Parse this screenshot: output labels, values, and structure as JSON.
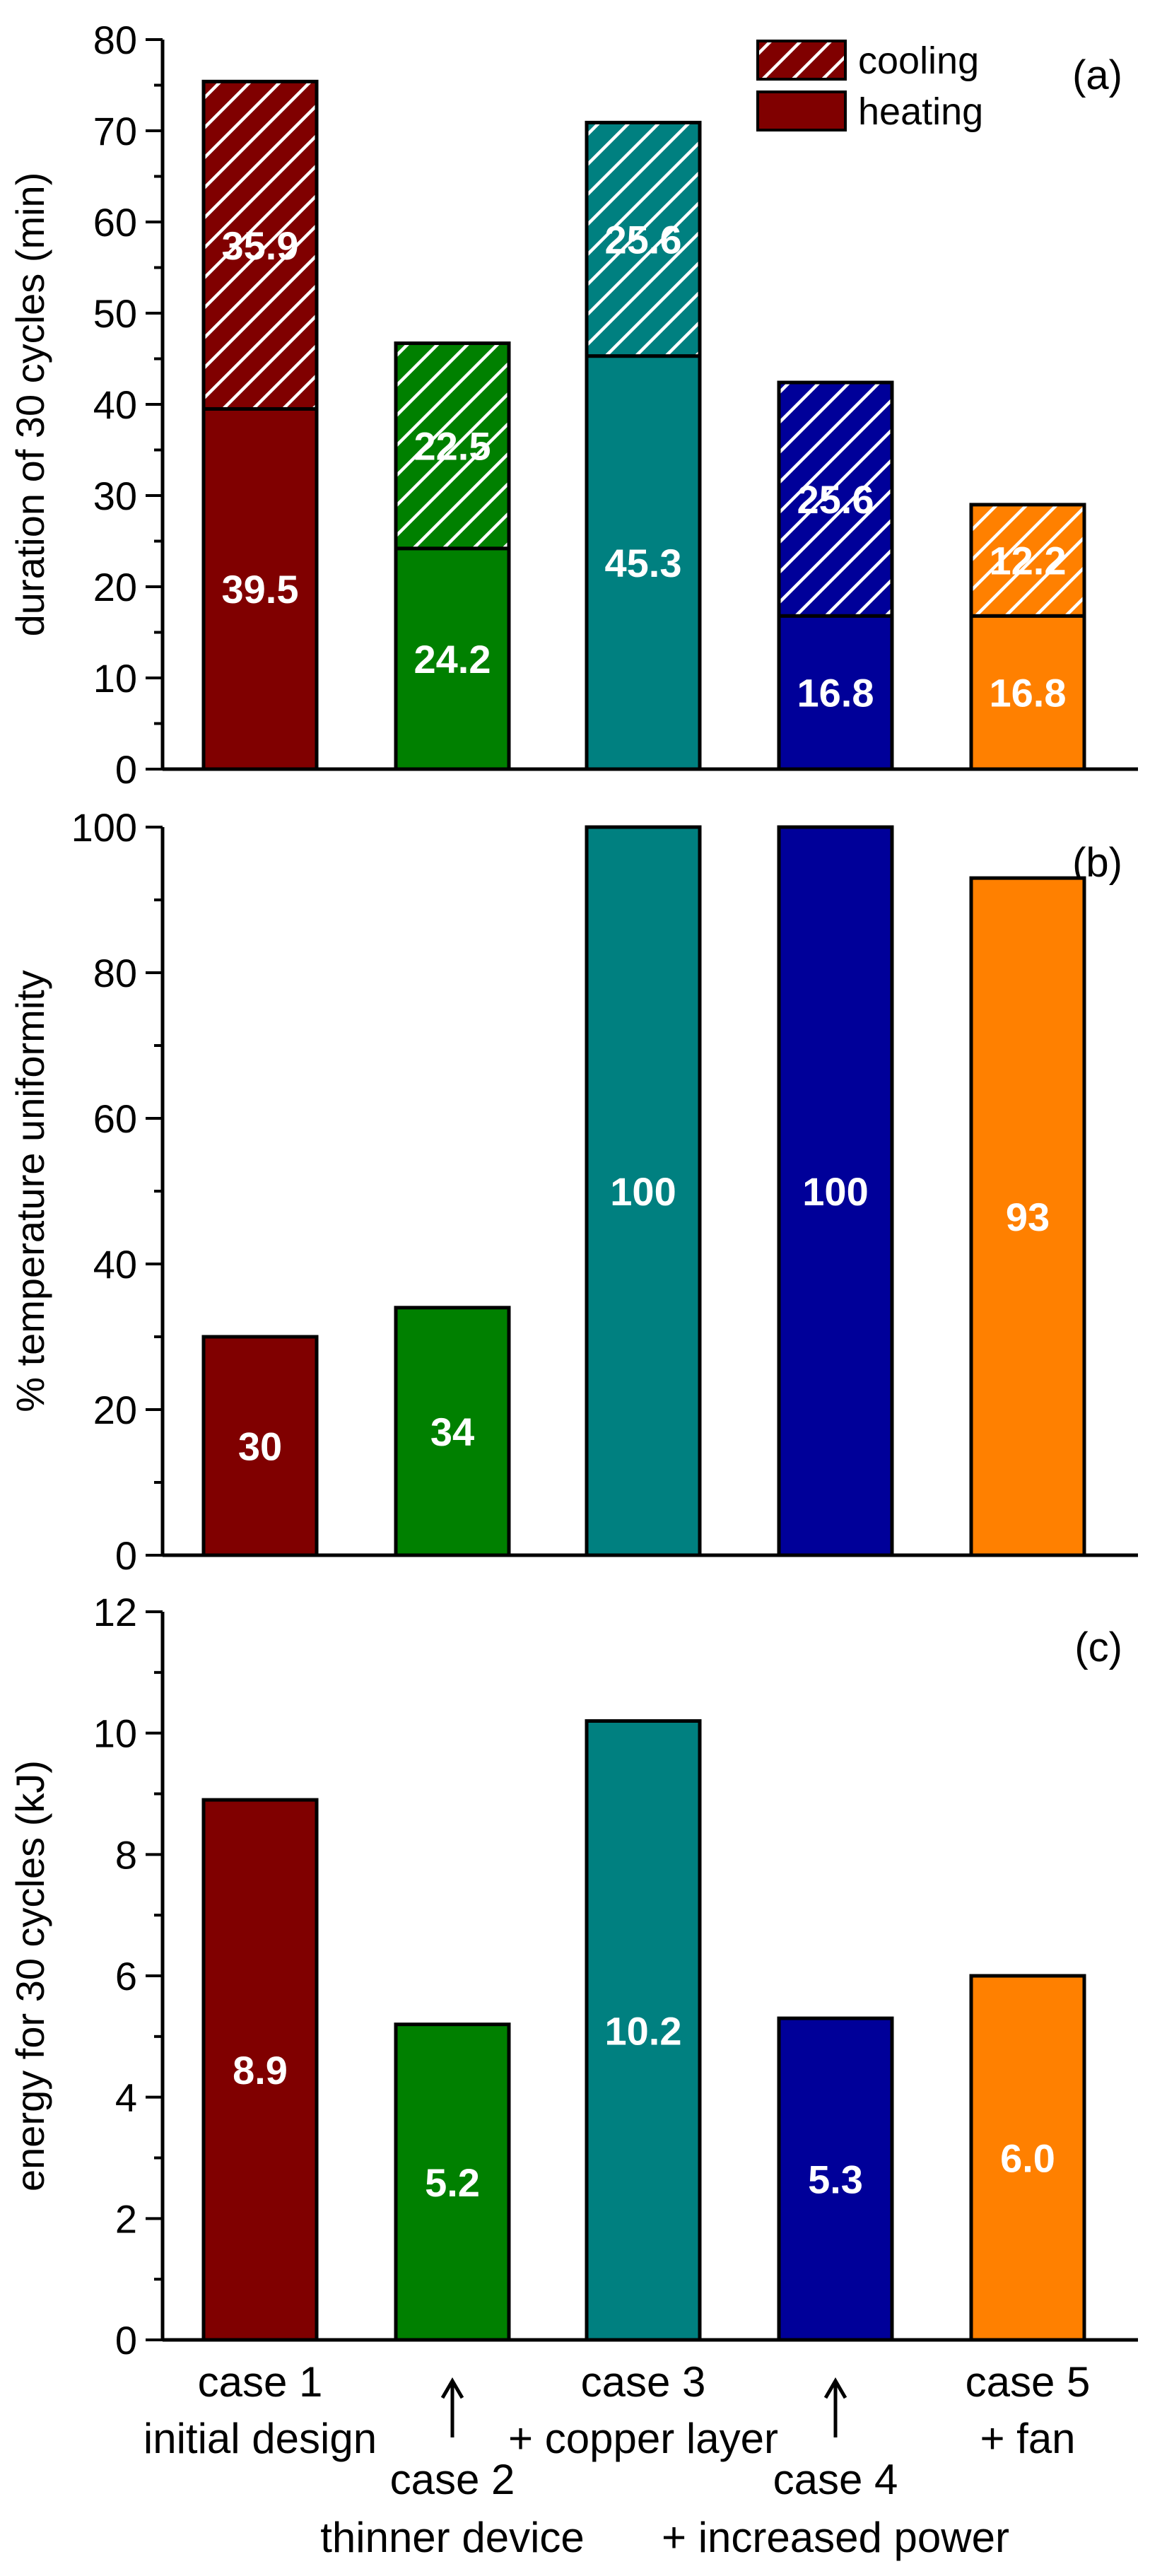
{
  "chart_data": [
    {
      "panel": "(a)",
      "type": "bar",
      "stacked": true,
      "ylabel": "duration of 30 cycles (min)",
      "ylim": [
        0,
        80
      ],
      "yticks": [
        0,
        10,
        20,
        30,
        40,
        50,
        60,
        70,
        80
      ],
      "legend_position": "top-right",
      "legend": [
        "cooling",
        "heating"
      ],
      "series": [
        {
          "name": "heating",
          "values": [
            39.5,
            24.2,
            45.3,
            16.8,
            16.8
          ],
          "labels": [
            "39.5",
            "24.2",
            "45.3",
            "16.8",
            "16.8"
          ]
        },
        {
          "name": "cooling",
          "values": [
            35.9,
            22.5,
            25.6,
            25.6,
            12.2
          ],
          "labels": [
            "35.9",
            "22.5",
            "25.6",
            "25.6",
            "12.2"
          ]
        }
      ]
    },
    {
      "panel": "(b)",
      "type": "bar",
      "ylabel": "% temperature uniformity",
      "ylim": [
        0,
        100
      ],
      "yticks": [
        0,
        20,
        40,
        60,
        80,
        100
      ],
      "values": [
        30,
        34,
        100,
        100,
        93
      ],
      "labels": [
        "30",
        "34",
        "100",
        "100",
        "93"
      ]
    },
    {
      "panel": "(c)",
      "type": "bar",
      "ylabel": "energy for 30 cycles (kJ)",
      "ylim": [
        0,
        12
      ],
      "yticks": [
        0,
        2,
        4,
        6,
        8,
        10,
        12
      ],
      "values": [
        8.9,
        5.2,
        10.2,
        5.3,
        6.0
      ],
      "labels": [
        "8.9",
        "5.2",
        "10.2",
        "5.3",
        "6.0"
      ]
    }
  ],
  "categories": [
    {
      "line1": "case 1",
      "line2": "initial design"
    },
    {
      "line1": "case 2",
      "line2": "thinner device"
    },
    {
      "line1": "case 3",
      "line2": "+ copper layer"
    },
    {
      "line1": "case 4",
      "line2": "+ increased power"
    },
    {
      "line1": "case 5",
      "line2": "+ fan"
    }
  ],
  "colors": [
    "#800000",
    "#008000",
    "#008080",
    "#000099",
    "#ff8000"
  ]
}
